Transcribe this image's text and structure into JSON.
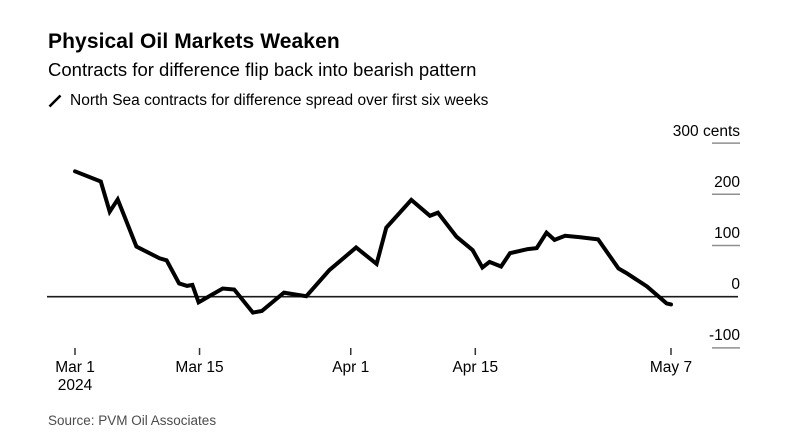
{
  "header": {
    "title": "Physical Oil Markets Weaken",
    "subtitle": "Contracts for difference flip back into bearish pattern",
    "legend": {
      "icon": "slash-icon",
      "label": "North Sea contracts for difference spread over first six weeks",
      "series_color": "#000000"
    }
  },
  "source": "Source: PVM Oil Associates",
  "colors": {
    "background": "#ffffff",
    "series_line": "#000000",
    "zero_axis_line": "#1a1a1a",
    "y_tick_stub": "#8f8f8f",
    "x_tick": "#333333",
    "text": "#000000",
    "source_text": "#4a4c4e"
  },
  "chart_data": {
    "type": "line",
    "title": "Physical Oil Markets Weaken",
    "subtitle": "Contracts for difference flip back into bearish pattern",
    "x_unit": "days since Mar 1 2024",
    "xlim": [
      0,
      67
    ],
    "ylim": [
      -130,
      320
    ],
    "grid": "zero-baseline-only",
    "legend_position": "top-left",
    "y_ticks": [
      {
        "value": 300,
        "label": "300 cents"
      },
      {
        "value": 200,
        "label": "200"
      },
      {
        "value": 100,
        "label": "100"
      },
      {
        "value": 0,
        "label": "0"
      },
      {
        "value": -100,
        "label": "-100"
      }
    ],
    "x_ticks": [
      {
        "day": 0,
        "label": "Mar 1",
        "sublabel": "2024"
      },
      {
        "day": 14,
        "label": "Mar 15",
        "sublabel": ""
      },
      {
        "day": 31,
        "label": "Apr 1",
        "sublabel": ""
      },
      {
        "day": 45,
        "label": "Apr 15",
        "sublabel": ""
      },
      {
        "day": 67,
        "label": "May 7",
        "sublabel": ""
      }
    ],
    "series": [
      {
        "name": "North Sea contracts for difference spread over first six weeks",
        "color": "#000000",
        "unit": "cents",
        "points": [
          [
            0,
            245
          ],
          [
            2.9,
            225
          ],
          [
            3.9,
            166
          ],
          [
            4.8,
            190
          ],
          [
            6.9,
            98
          ],
          [
            9.5,
            75
          ],
          [
            10.3,
            71
          ],
          [
            11.7,
            26
          ],
          [
            12.6,
            21
          ],
          [
            13.2,
            23
          ],
          [
            13.9,
            -11
          ],
          [
            15.5,
            5
          ],
          [
            16.6,
            16
          ],
          [
            17.9,
            14
          ],
          [
            20,
            -31
          ],
          [
            21,
            -28
          ],
          [
            23.5,
            8
          ],
          [
            24.5,
            5
          ],
          [
            26,
            1
          ],
          [
            28.6,
            52
          ],
          [
            31.6,
            96
          ],
          [
            33.9,
            64
          ],
          [
            35,
            135
          ],
          [
            37.8,
            189
          ],
          [
            39.9,
            158
          ],
          [
            40.8,
            164
          ],
          [
            42.9,
            117
          ],
          [
            44.7,
            91
          ],
          [
            45.8,
            57
          ],
          [
            46.6,
            68
          ],
          [
            47.9,
            59
          ],
          [
            48.9,
            85
          ],
          [
            50.9,
            93
          ],
          [
            51.9,
            95
          ],
          [
            53,
            125
          ],
          [
            53.9,
            111
          ],
          [
            55.1,
            119
          ],
          [
            56.8,
            116
          ],
          [
            58.8,
            112
          ],
          [
            61.1,
            55
          ],
          [
            62,
            46
          ],
          [
            64.3,
            20
          ],
          [
            66.5,
            -13
          ],
          [
            67,
            -15
          ]
        ]
      }
    ]
  }
}
